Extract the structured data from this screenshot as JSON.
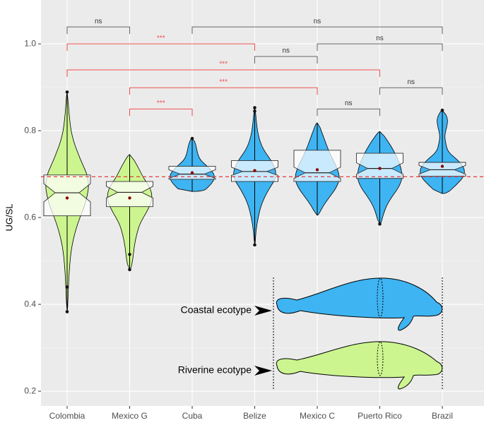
{
  "chart_data": {
    "type": "violin",
    "ylabel": "UG/SL",
    "categories": [
      "Colombia",
      "Mexico G",
      "Cuba",
      "Belize",
      "Mexico C",
      "Puerto Rico",
      "Brazil"
    ],
    "ylim": [
      0.166,
      1.101
    ],
    "yticks": [
      0.2,
      0.4,
      0.6,
      0.8,
      {
        "value": 1.0,
        "label": "1.0"
      }
    ],
    "grid": true,
    "reference_line": {
      "value": 0.694,
      "color": "#e8262c"
    },
    "groups": [
      {
        "color": "#ccf590",
        "min": 0.383,
        "q1": 0.604,
        "median": 0.657,
        "q3": 0.698,
        "max": 0.889,
        "mean": 0.645,
        "notch": [
          0.636,
          0.678
        ],
        "outliers": [
          0.889,
          0.44,
          0.383
        ],
        "violin": [
          0.02,
          0.05,
          0.1,
          0.2,
          0.45,
          0.85,
          1.0,
          0.55,
          0.2,
          0.08,
          0.02
        ]
      },
      {
        "color": "#ccf590",
        "min": 0.48,
        "q1": 0.625,
        "median": 0.658,
        "q3": 0.683,
        "max": 0.745,
        "mean": 0.645,
        "notch": [
          0.645,
          0.672
        ],
        "outliers": [
          0.515,
          0.48
        ],
        "violin": [
          0.05,
          0.15,
          0.2,
          0.3,
          0.45,
          0.75,
          1.0,
          0.95,
          0.6,
          0.35,
          0.05
        ]
      },
      {
        "color": "#3eb4f2",
        "min": 0.66,
        "q1": 0.688,
        "median": 0.7,
        "q3": 0.718,
        "max": 0.782,
        "mean": 0.703,
        "notch": [
          0.69,
          0.71
        ],
        "outliers": [
          0.782
        ],
        "violin": [
          0.5,
          0.75,
          0.95,
          1.0,
          0.85,
          0.6,
          0.35,
          0.25,
          0.2,
          0.15,
          0.05
        ]
      },
      {
        "color": "#3eb4f2",
        "min": 0.537,
        "q1": 0.683,
        "median": 0.706,
        "q3": 0.731,
        "max": 0.853,
        "mean": 0.708,
        "notch": [
          0.697,
          0.716
        ],
        "outliers": [
          0.853,
          0.845,
          0.537
        ],
        "violin": [
          0.02,
          0.05,
          0.15,
          0.3,
          0.6,
          1.0,
          0.8,
          0.35,
          0.15,
          0.07,
          0.02
        ]
      },
      {
        "color": "#3eb4f2",
        "min": 0.605,
        "q1": 0.683,
        "median": 0.703,
        "q3": 0.755,
        "max": 0.818,
        "mean": 0.71,
        "notch": [
          0.69,
          0.716
        ],
        "outliers": [],
        "violin": [
          0.05,
          0.25,
          0.55,
          0.85,
          1.0,
          0.9,
          0.7,
          0.5,
          0.35,
          0.2,
          0.05
        ]
      },
      {
        "color": "#3eb4f2",
        "min": 0.585,
        "q1": 0.69,
        "median": 0.713,
        "q3": 0.748,
        "max": 0.798,
        "mean": 0.713,
        "notch": [
          0.7,
          0.726
        ],
        "outliers": [
          0.585
        ],
        "violin": [
          0.05,
          0.15,
          0.3,
          0.55,
          0.85,
          1.0,
          0.95,
          0.8,
          0.6,
          0.35,
          0.05
        ]
      },
      {
        "color": "#3eb4f2",
        "min": 0.655,
        "q1": 0.695,
        "median": 0.71,
        "q3": 0.727,
        "max": 0.847,
        "mean": 0.718,
        "notch": [
          0.7,
          0.72
        ],
        "outliers": [
          0.847
        ],
        "violin": [
          0.2,
          0.6,
          0.95,
          1.0,
          0.7,
          0.25,
          0.15,
          0.1,
          0.2,
          0.25,
          0.05
        ]
      }
    ],
    "brackets": [
      {
        "from": 0,
        "to": 1,
        "y": 1.039,
        "label": "ns",
        "color": "#666666"
      },
      {
        "from": 2,
        "to": 6,
        "y": 1.039,
        "label": "ns",
        "color": "#666666"
      },
      {
        "from": 0,
        "to": 3,
        "y": 1.0,
        "label": "***",
        "color": "#f05050"
      },
      {
        "from": 4,
        "to": 6,
        "y": 1.0,
        "label": "ns",
        "color": "#666666"
      },
      {
        "from": 3,
        "to": 4,
        "y": 0.971,
        "label": "ns",
        "color": "#666666"
      },
      {
        "from": 0,
        "to": 5,
        "y": 0.94,
        "label": "***",
        "color": "#f05050"
      },
      {
        "from": 1,
        "to": 4,
        "y": 0.899,
        "label": "***",
        "color": "#f05050"
      },
      {
        "from": 5,
        "to": 6,
        "y": 0.899,
        "label": "ns",
        "color": "#666666"
      },
      {
        "from": 1,
        "to": 2,
        "y": 0.85,
        "label": "***",
        "color": "#f05050"
      },
      {
        "from": 4,
        "to": 5,
        "y": 0.85,
        "label": "ns",
        "color": "#666666"
      }
    ],
    "annotations": [
      "Coastal ecotype",
      "Riverine ecotype"
    ]
  }
}
